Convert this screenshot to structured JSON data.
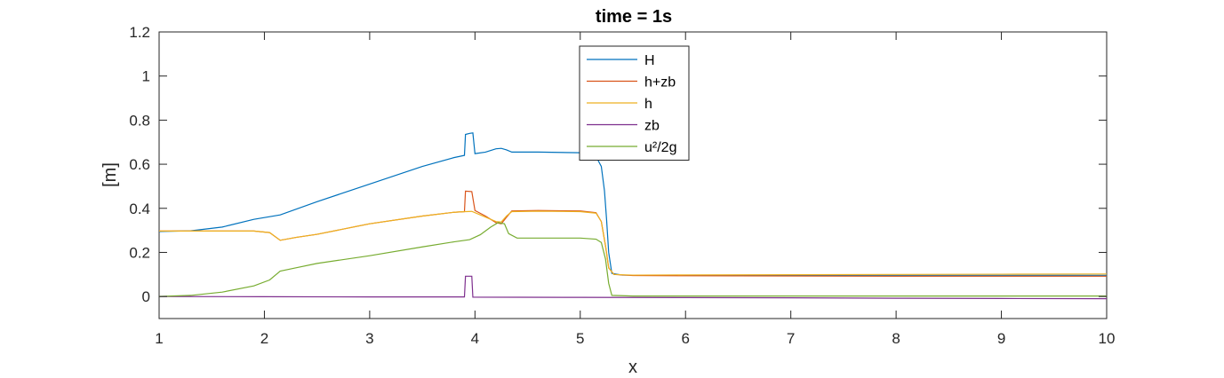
{
  "chart_data": {
    "type": "line",
    "title": "time = 1s",
    "xlabel": "x",
    "ylabel": "[m]",
    "xlim": [
      1,
      10
    ],
    "ylim": [
      -0.1,
      1.2
    ],
    "xticks": [
      1,
      2,
      3,
      4,
      5,
      6,
      7,
      8,
      9,
      10
    ],
    "yticks": [
      0,
      0.2,
      0.4,
      0.6,
      0.8,
      1,
      1.2
    ],
    "ytick_labels": [
      "0",
      "0.2",
      "0.4",
      "0.6",
      "0.8",
      "1",
      "1.2"
    ],
    "grid": false,
    "legend_position": "top-center",
    "series": [
      {
        "name": "H",
        "color": "#0072bd",
        "points": [
          [
            1.0,
            0.295
          ],
          [
            1.3,
            0.298
          ],
          [
            1.6,
            0.315
          ],
          [
            1.9,
            0.35
          ],
          [
            2.15,
            0.37
          ],
          [
            2.5,
            0.43
          ],
          [
            3.0,
            0.51
          ],
          [
            3.5,
            0.59
          ],
          [
            3.8,
            0.63
          ],
          [
            3.9,
            0.64
          ],
          [
            3.91,
            0.735
          ],
          [
            3.95,
            0.74
          ],
          [
            3.98,
            0.742
          ],
          [
            4.0,
            0.648
          ],
          [
            4.1,
            0.655
          ],
          [
            4.2,
            0.67
          ],
          [
            4.25,
            0.672
          ],
          [
            4.3,
            0.665
          ],
          [
            4.35,
            0.655
          ],
          [
            4.6,
            0.655
          ],
          [
            5.0,
            0.652
          ],
          [
            5.1,
            0.648
          ],
          [
            5.15,
            0.635
          ],
          [
            5.2,
            0.59
          ],
          [
            5.23,
            0.48
          ],
          [
            5.25,
            0.35
          ],
          [
            5.27,
            0.2
          ],
          [
            5.3,
            0.105
          ],
          [
            5.4,
            0.097
          ],
          [
            6.0,
            0.097
          ],
          [
            7.0,
            0.096
          ],
          [
            8.0,
            0.096
          ],
          [
            9.0,
            0.096
          ],
          [
            10.0,
            0.096
          ]
        ]
      },
      {
        "name": "h+zb",
        "color": "#d95319",
        "points": [
          [
            1.0,
            0.297
          ],
          [
            1.5,
            0.297
          ],
          [
            1.9,
            0.297
          ],
          [
            2.05,
            0.29
          ],
          [
            2.15,
            0.255
          ],
          [
            2.3,
            0.268
          ],
          [
            2.5,
            0.282
          ],
          [
            3.0,
            0.33
          ],
          [
            3.5,
            0.365
          ],
          [
            3.8,
            0.382
          ],
          [
            3.9,
            0.385
          ],
          [
            3.91,
            0.478
          ],
          [
            3.97,
            0.476
          ],
          [
            4.0,
            0.39
          ],
          [
            4.1,
            0.365
          ],
          [
            4.2,
            0.335
          ],
          [
            4.25,
            0.33
          ],
          [
            4.3,
            0.36
          ],
          [
            4.35,
            0.388
          ],
          [
            4.6,
            0.39
          ],
          [
            5.0,
            0.388
          ],
          [
            5.15,
            0.38
          ],
          [
            5.2,
            0.34
          ],
          [
            5.24,
            0.23
          ],
          [
            5.27,
            0.13
          ],
          [
            5.32,
            0.1
          ],
          [
            5.5,
            0.095
          ],
          [
            6.0,
            0.094
          ],
          [
            7.0,
            0.093
          ],
          [
            8.0,
            0.092
          ],
          [
            9.0,
            0.092
          ],
          [
            10.0,
            0.092
          ]
        ]
      },
      {
        "name": "h",
        "color": "#edb120",
        "points": [
          [
            1.0,
            0.297
          ],
          [
            1.5,
            0.297
          ],
          [
            1.9,
            0.297
          ],
          [
            2.05,
            0.29
          ],
          [
            2.15,
            0.255
          ],
          [
            2.3,
            0.268
          ],
          [
            2.5,
            0.282
          ],
          [
            3.0,
            0.33
          ],
          [
            3.5,
            0.365
          ],
          [
            3.8,
            0.382
          ],
          [
            3.9,
            0.385
          ],
          [
            3.91,
            0.385
          ],
          [
            3.97,
            0.386
          ],
          [
            4.0,
            0.38
          ],
          [
            4.1,
            0.36
          ],
          [
            4.2,
            0.34
          ],
          [
            4.25,
            0.338
          ],
          [
            4.3,
            0.365
          ],
          [
            4.35,
            0.385
          ],
          [
            4.6,
            0.387
          ],
          [
            5.0,
            0.385
          ],
          [
            5.15,
            0.378
          ],
          [
            5.2,
            0.34
          ],
          [
            5.24,
            0.23
          ],
          [
            5.27,
            0.13
          ],
          [
            5.32,
            0.1
          ],
          [
            5.5,
            0.097
          ],
          [
            6.0,
            0.098
          ],
          [
            7.0,
            0.099
          ],
          [
            8.0,
            0.1
          ],
          [
            9.0,
            0.101
          ],
          [
            10.0,
            0.102
          ]
        ]
      },
      {
        "name": "zb",
        "color": "#7e2f8e",
        "points": [
          [
            1.0,
            0.0
          ],
          [
            2.0,
            -0.001
          ],
          [
            3.0,
            -0.002
          ],
          [
            3.9,
            -0.002
          ],
          [
            3.91,
            0.092
          ],
          [
            3.97,
            0.092
          ],
          [
            3.98,
            -0.003
          ],
          [
            5.0,
            -0.004
          ],
          [
            6.0,
            -0.005
          ],
          [
            7.0,
            -0.006
          ],
          [
            8.0,
            -0.008
          ],
          [
            9.0,
            -0.009
          ],
          [
            10.0,
            -0.01
          ]
        ]
      },
      {
        "name": "u²/2g",
        "color": "#77ac30",
        "points": [
          [
            1.0,
            0.0
          ],
          [
            1.3,
            0.005
          ],
          [
            1.6,
            0.02
          ],
          [
            1.9,
            0.048
          ],
          [
            2.05,
            0.075
          ],
          [
            2.15,
            0.115
          ],
          [
            2.3,
            0.13
          ],
          [
            2.5,
            0.15
          ],
          [
            3.0,
            0.185
          ],
          [
            3.5,
            0.225
          ],
          [
            3.8,
            0.248
          ],
          [
            3.95,
            0.258
          ],
          [
            4.05,
            0.28
          ],
          [
            4.15,
            0.315
          ],
          [
            4.22,
            0.335
          ],
          [
            4.28,
            0.33
          ],
          [
            4.32,
            0.285
          ],
          [
            4.4,
            0.265
          ],
          [
            5.0,
            0.265
          ],
          [
            5.15,
            0.26
          ],
          [
            5.2,
            0.245
          ],
          [
            5.24,
            0.17
          ],
          [
            5.27,
            0.06
          ],
          [
            5.3,
            0.005
          ],
          [
            5.5,
            0.002
          ],
          [
            6.0,
            0.002
          ],
          [
            7.0,
            0.002
          ],
          [
            8.0,
            0.002
          ],
          [
            9.0,
            0.002
          ],
          [
            10.0,
            0.002
          ]
        ]
      }
    ]
  }
}
